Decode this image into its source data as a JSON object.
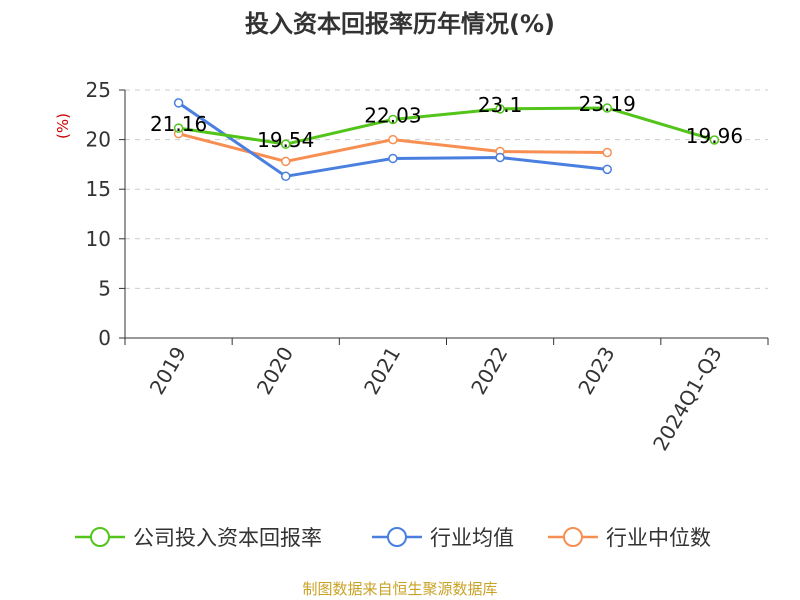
{
  "title": "投入资本回报率历年情况(%)",
  "source": "制图数据来自恒生聚源数据库",
  "colors": {
    "company": "#52c41a",
    "industry_avg": "#4a7fe0",
    "industry_median": "#f78f53",
    "unit": "#cc0000",
    "source": "#c9a227"
  },
  "chart_data": {
    "type": "line",
    "title": "投入资本回报率历年情况(%)",
    "ylabel": "(%)",
    "xlabel": "",
    "categories": [
      "2019",
      "2020",
      "2021",
      "2022",
      "2023",
      "2024Q1-Q3"
    ],
    "ylim": [
      0,
      25
    ],
    "yticks": [
      0,
      5,
      10,
      15,
      20,
      25
    ],
    "grid": true,
    "legend_position": "bottom",
    "series": [
      {
        "name": "公司投入资本回报率",
        "values": [
          21.16,
          19.54,
          22.03,
          23.1,
          23.19,
          19.96
        ],
        "labels": [
          "21.16",
          "19.54",
          "22.03",
          "23.1",
          "23.19",
          "19.96"
        ],
        "color_key": "company"
      },
      {
        "name": "行业均值",
        "values": [
          23.7,
          16.3,
          18.1,
          18.2,
          17.0,
          null
        ],
        "color_key": "industry_avg"
      },
      {
        "name": "行业中位数",
        "values": [
          20.6,
          17.8,
          20.0,
          18.8,
          18.7,
          null
        ],
        "color_key": "industry_median"
      }
    ]
  }
}
